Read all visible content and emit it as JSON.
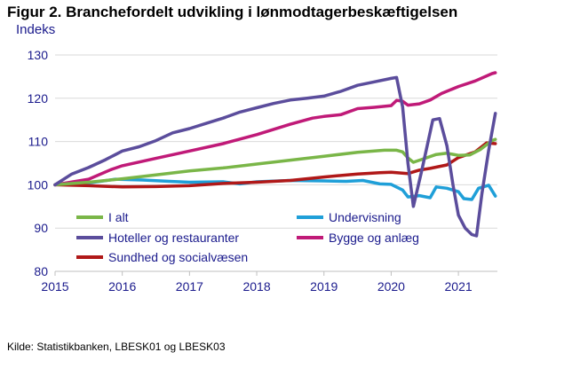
{
  "title": "Figur 2. Branchefordelt udvikling i lønmodtagerbeskæftigelsen",
  "source": "Kilde: Statistikbanken, LBESK01 og LBESK03",
  "chart_data": {
    "type": "line",
    "ylabel": "Indeks",
    "xlabel": "",
    "ylim": [
      80,
      130
    ],
    "yticks": [
      80,
      90,
      100,
      110,
      120,
      130
    ],
    "xlim": [
      2015,
      2021.58
    ],
    "xticks": [
      2015,
      2016,
      2017,
      2018,
      2019,
      2020,
      2021
    ],
    "xtick_labels": [
      "2015",
      "2016",
      "2017",
      "2018",
      "2019",
      "2020",
      "2021"
    ],
    "grid": true,
    "legend": "bottom-inside",
    "series": [
      {
        "name": "I alt",
        "color": "#7ab648",
        "points": [
          [
            2015,
            100
          ],
          [
            2015.5,
            100.6
          ],
          [
            2016,
            101.4
          ],
          [
            2016.5,
            102.3
          ],
          [
            2017,
            103.2
          ],
          [
            2017.5,
            103.9
          ],
          [
            2018,
            104.8
          ],
          [
            2018.5,
            105.7
          ],
          [
            2019,
            106.6
          ],
          [
            2019.5,
            107.5
          ],
          [
            2019.9,
            108
          ],
          [
            2020.08,
            108
          ],
          [
            2020.17,
            107.6
          ],
          [
            2020.25,
            106.2
          ],
          [
            2020.33,
            105.2
          ],
          [
            2020.5,
            106.1
          ],
          [
            2020.67,
            107
          ],
          [
            2020.83,
            107.3
          ],
          [
            2021,
            106.8
          ],
          [
            2021.17,
            106.9
          ],
          [
            2021.33,
            108.2
          ],
          [
            2021.5,
            110.2
          ],
          [
            2021.55,
            110.5
          ]
        ]
      },
      {
        "name": "Undervisning",
        "color": "#1f9fd8",
        "points": [
          [
            2015,
            100
          ],
          [
            2015.5,
            100.4
          ],
          [
            2015.9,
            101.3
          ],
          [
            2016.3,
            101.1
          ],
          [
            2016.7,
            100.8
          ],
          [
            2017,
            100.6
          ],
          [
            2017.5,
            100.7
          ],
          [
            2017.75,
            100.2
          ],
          [
            2018,
            100.7
          ],
          [
            2018.5,
            101
          ],
          [
            2019,
            100.9
          ],
          [
            2019.33,
            100.8
          ],
          [
            2019.58,
            101
          ],
          [
            2019.83,
            100.2
          ],
          [
            2020,
            100.1
          ],
          [
            2020.17,
            98.8
          ],
          [
            2020.25,
            97.2
          ],
          [
            2020.42,
            97.5
          ],
          [
            2020.58,
            97
          ],
          [
            2020.67,
            99.5
          ],
          [
            2020.83,
            99.2
          ],
          [
            2021,
            98.4
          ],
          [
            2021.08,
            96.8
          ],
          [
            2021.2,
            96.6
          ],
          [
            2021.3,
            99.2
          ],
          [
            2021.45,
            99.9
          ],
          [
            2021.55,
            97.4
          ]
        ]
      },
      {
        "name": "Hoteller og restauranter",
        "color": "#5b4d9c",
        "points": [
          [
            2015,
            100
          ],
          [
            2015.25,
            102.5
          ],
          [
            2015.5,
            104
          ],
          [
            2015.75,
            105.8
          ],
          [
            2016,
            107.8
          ],
          [
            2016.25,
            108.8
          ],
          [
            2016.5,
            110.2
          ],
          [
            2016.75,
            112
          ],
          [
            2017,
            113
          ],
          [
            2017.25,
            114.2
          ],
          [
            2017.5,
            115.4
          ],
          [
            2017.75,
            116.8
          ],
          [
            2018,
            117.8
          ],
          [
            2018.25,
            118.8
          ],
          [
            2018.5,
            119.6
          ],
          [
            2018.75,
            120
          ],
          [
            2019,
            120.5
          ],
          [
            2019.25,
            121.6
          ],
          [
            2019.5,
            123
          ],
          [
            2019.75,
            123.8
          ],
          [
            2020,
            124.6
          ],
          [
            2020.08,
            124.8
          ],
          [
            2020.17,
            118
          ],
          [
            2020.25,
            105
          ],
          [
            2020.33,
            95
          ],
          [
            2020.45,
            103
          ],
          [
            2020.55,
            110
          ],
          [
            2020.62,
            115
          ],
          [
            2020.72,
            115.3
          ],
          [
            2020.83,
            109
          ],
          [
            2020.92,
            100
          ],
          [
            2021,
            93
          ],
          [
            2021.1,
            90
          ],
          [
            2021.2,
            88.5
          ],
          [
            2021.27,
            88.2
          ],
          [
            2021.35,
            98
          ],
          [
            2021.45,
            108
          ],
          [
            2021.55,
            116.5
          ]
        ]
      },
      {
        "name": "Bygge og anlæg",
        "color": "#c01a78",
        "points": [
          [
            2015,
            100
          ],
          [
            2015.5,
            101.3
          ],
          [
            2015.83,
            103.5
          ],
          [
            2016,
            104.4
          ],
          [
            2016.5,
            106.1
          ],
          [
            2017,
            107.8
          ],
          [
            2017.5,
            109.5
          ],
          [
            2018,
            111.6
          ],
          [
            2018.5,
            114
          ],
          [
            2018.83,
            115.4
          ],
          [
            2019,
            115.8
          ],
          [
            2019.25,
            116.2
          ],
          [
            2019.5,
            117.6
          ],
          [
            2019.75,
            117.9
          ],
          [
            2020,
            118.3
          ],
          [
            2020.08,
            119.5
          ],
          [
            2020.17,
            119.3
          ],
          [
            2020.25,
            118.4
          ],
          [
            2020.42,
            118.7
          ],
          [
            2020.58,
            119.6
          ],
          [
            2020.75,
            121.1
          ],
          [
            2021,
            122.7
          ],
          [
            2021.25,
            124
          ],
          [
            2021.5,
            125.7
          ],
          [
            2021.55,
            125.9
          ]
        ]
      },
      {
        "name": "Sundhed og socialvæsen",
        "color": "#b01818",
        "points": [
          [
            2015,
            100
          ],
          [
            2015.5,
            99.8
          ],
          [
            2016,
            99.5
          ],
          [
            2016.5,
            99.6
          ],
          [
            2017,
            99.8
          ],
          [
            2017.5,
            100.3
          ],
          [
            2018,
            100.6
          ],
          [
            2018.5,
            101
          ],
          [
            2019,
            101.8
          ],
          [
            2019.5,
            102.5
          ],
          [
            2019.83,
            102.8
          ],
          [
            2020,
            102.9
          ],
          [
            2020.25,
            102.6
          ],
          [
            2020.42,
            103.4
          ],
          [
            2020.58,
            103.8
          ],
          [
            2020.83,
            104.6
          ],
          [
            2021,
            106.3
          ],
          [
            2021.25,
            107.6
          ],
          [
            2021.42,
            109.7
          ],
          [
            2021.55,
            109.5
          ]
        ]
      }
    ]
  }
}
